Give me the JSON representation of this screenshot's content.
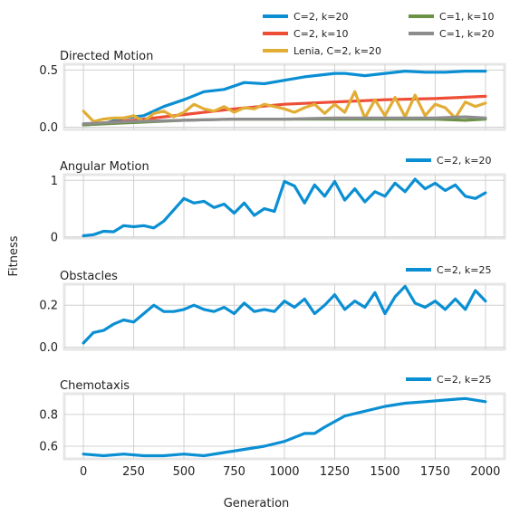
{
  "figure": {
    "ylabel": "Fitness",
    "xlabel": "Generation",
    "xticks": [
      "0",
      "250",
      "500",
      "750",
      "1000",
      "1250",
      "1500",
      "1750",
      "2000"
    ]
  },
  "colors": {
    "blue": "#0a8fd3",
    "red": "#ee4e36",
    "yellow": "#e2ad35",
    "green": "#6b9144",
    "gray": "#8d8d8d"
  },
  "chart_data": [
    {
      "type": "line",
      "title": "Directed Motion",
      "xlim": [
        -95,
        2095
      ],
      "ylim": [
        -0.02,
        0.55
      ],
      "yticks": [
        0.0,
        0.5
      ],
      "ytick_labels": [
        "0.0",
        "0.5"
      ],
      "legend": "top-right",
      "legend_columns": 2,
      "series": [
        {
          "name": "C=2, k=20",
          "color": "blue",
          "x": [
            0,
            100,
            200,
            300,
            400,
            500,
            600,
            700,
            800,
            900,
            1000,
            1100,
            1200,
            1250,
            1300,
            1400,
            1500,
            1600,
            1700,
            1800,
            1900,
            2000
          ],
          "y": [
            0.02,
            0.03,
            0.08,
            0.1,
            0.18,
            0.24,
            0.31,
            0.33,
            0.39,
            0.38,
            0.41,
            0.44,
            0.46,
            0.47,
            0.47,
            0.45,
            0.47,
            0.49,
            0.48,
            0.48,
            0.49,
            0.49
          ]
        },
        {
          "name": "C=2, k=10",
          "color": "red",
          "x": [
            0,
            250,
            500,
            750,
            1000,
            1250,
            1500,
            1750,
            2000
          ],
          "y": [
            0.02,
            0.06,
            0.11,
            0.16,
            0.2,
            0.22,
            0.24,
            0.25,
            0.27
          ]
        },
        {
          "name": "Lenia, C=2, k=20",
          "color": "yellow",
          "x": [
            0,
            50,
            100,
            150,
            200,
            250,
            300,
            350,
            400,
            450,
            500,
            550,
            600,
            650,
            700,
            750,
            800,
            850,
            900,
            950,
            1000,
            1050,
            1100,
            1150,
            1200,
            1250,
            1300,
            1350,
            1400,
            1450,
            1500,
            1550,
            1600,
            1650,
            1700,
            1750,
            1800,
            1850,
            1900,
            1950,
            2000
          ],
          "y": [
            0.14,
            0.05,
            0.07,
            0.08,
            0.08,
            0.1,
            0.05,
            0.12,
            0.14,
            0.09,
            0.13,
            0.2,
            0.16,
            0.14,
            0.18,
            0.13,
            0.17,
            0.16,
            0.2,
            0.18,
            0.16,
            0.13,
            0.17,
            0.2,
            0.12,
            0.2,
            0.13,
            0.31,
            0.08,
            0.24,
            0.1,
            0.26,
            0.09,
            0.28,
            0.1,
            0.2,
            0.17,
            0.08,
            0.22,
            0.18,
            0.21
          ]
        },
        {
          "name": "C=1, k=10",
          "color": "green",
          "x": [
            0,
            250,
            500,
            750,
            1000,
            1250,
            1500,
            1750,
            1900,
            2000
          ],
          "y": [
            0.02,
            0.04,
            0.06,
            0.07,
            0.07,
            0.07,
            0.07,
            0.07,
            0.06,
            0.07
          ]
        },
        {
          "name": "C=1, k=20",
          "color": "gray",
          "x": [
            0,
            250,
            500,
            750,
            1000,
            1250,
            1500,
            1750,
            1900,
            2000
          ],
          "y": [
            0.03,
            0.05,
            0.06,
            0.07,
            0.07,
            0.08,
            0.08,
            0.08,
            0.09,
            0.08
          ]
        }
      ]
    },
    {
      "type": "line",
      "title": "Angular Motion",
      "xlim": [
        -95,
        2095
      ],
      "ylim": [
        -0.02,
        1.1
      ],
      "yticks": [
        0,
        1
      ],
      "ytick_labels": [
        "0",
        "1"
      ],
      "legend": "top-right",
      "legend_columns": 1,
      "series": [
        {
          "name": "C=2, k=20",
          "color": "blue",
          "x": [
            0,
            50,
            100,
            150,
            200,
            250,
            300,
            350,
            400,
            450,
            500,
            550,
            600,
            650,
            700,
            750,
            800,
            850,
            900,
            950,
            1000,
            1050,
            1100,
            1150,
            1200,
            1250,
            1300,
            1350,
            1400,
            1450,
            1500,
            1550,
            1600,
            1650,
            1700,
            1750,
            1800,
            1850,
            1900,
            1950,
            2000
          ],
          "y": [
            0.02,
            0.04,
            0.1,
            0.09,
            0.2,
            0.18,
            0.2,
            0.16,
            0.28,
            0.48,
            0.68,
            0.6,
            0.63,
            0.52,
            0.58,
            0.42,
            0.6,
            0.38,
            0.5,
            0.45,
            0.98,
            0.9,
            0.6,
            0.92,
            0.72,
            0.98,
            0.65,
            0.85,
            0.62,
            0.8,
            0.72,
            0.95,
            0.8,
            1.02,
            0.85,
            0.95,
            0.82,
            0.92,
            0.72,
            0.68,
            0.78
          ]
        }
      ]
    },
    {
      "type": "line",
      "title": "Obstacles",
      "xlim": [
        -95,
        2095
      ],
      "ylim": [
        -0.01,
        0.3
      ],
      "yticks": [
        0.0,
        0.2
      ],
      "ytick_labels": [
        "0.0",
        "0.2"
      ],
      "legend": "top-right",
      "legend_columns": 1,
      "series": [
        {
          "name": "C=2, k=25",
          "color": "blue",
          "x": [
            0,
            50,
            100,
            150,
            200,
            250,
            300,
            350,
            400,
            450,
            500,
            550,
            600,
            650,
            700,
            750,
            800,
            850,
            900,
            950,
            1000,
            1050,
            1100,
            1150,
            1200,
            1250,
            1300,
            1350,
            1400,
            1450,
            1500,
            1550,
            1600,
            1650,
            1700,
            1750,
            1800,
            1850,
            1900,
            1950,
            2000
          ],
          "y": [
            0.02,
            0.07,
            0.08,
            0.11,
            0.13,
            0.12,
            0.16,
            0.2,
            0.17,
            0.17,
            0.18,
            0.2,
            0.18,
            0.17,
            0.19,
            0.16,
            0.21,
            0.17,
            0.18,
            0.17,
            0.22,
            0.19,
            0.23,
            0.16,
            0.2,
            0.25,
            0.18,
            0.22,
            0.19,
            0.26,
            0.16,
            0.24,
            0.29,
            0.21,
            0.19,
            0.22,
            0.18,
            0.23,
            0.18,
            0.27,
            0.22
          ]
        }
      ]
    },
    {
      "type": "line",
      "title": "Chemotaxis",
      "xlim": [
        -95,
        2095
      ],
      "ylim": [
        0.52,
        0.93
      ],
      "yticks": [
        0.6,
        0.8
      ],
      "ytick_labels": [
        "0.6",
        "0.8"
      ],
      "legend": "top-right",
      "legend_columns": 1,
      "series": [
        {
          "name": "C=2, k=25",
          "color": "blue",
          "x": [
            0,
            100,
            200,
            300,
            400,
            500,
            600,
            700,
            800,
            900,
            1000,
            1100,
            1150,
            1200,
            1300,
            1400,
            1500,
            1600,
            1700,
            1800,
            1900,
            2000
          ],
          "y": [
            0.55,
            0.54,
            0.55,
            0.54,
            0.54,
            0.55,
            0.54,
            0.56,
            0.58,
            0.6,
            0.63,
            0.68,
            0.68,
            0.72,
            0.79,
            0.82,
            0.85,
            0.87,
            0.88,
            0.89,
            0.9,
            0.88
          ]
        }
      ]
    }
  ]
}
